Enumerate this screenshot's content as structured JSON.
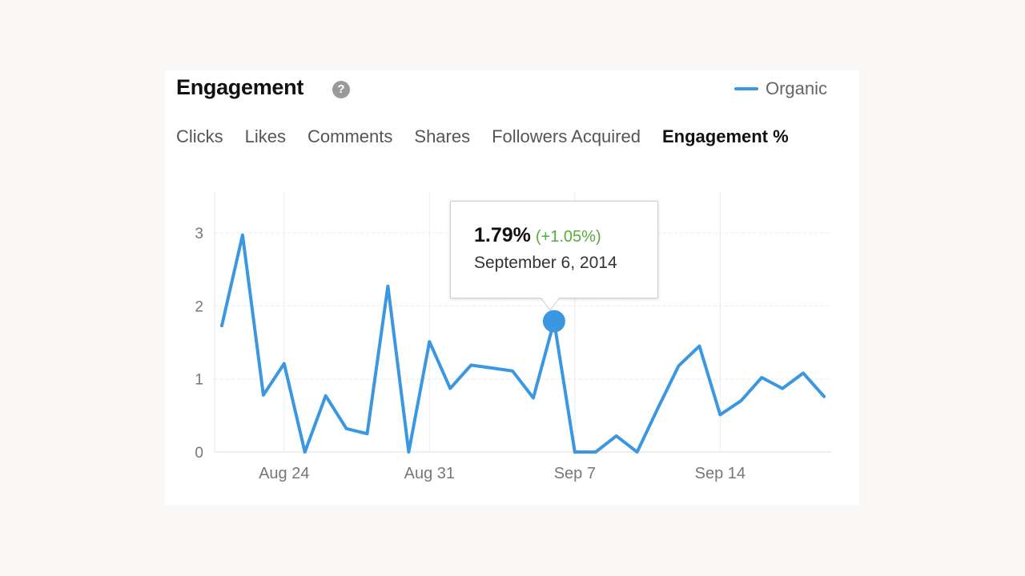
{
  "header": {
    "title": "Engagement",
    "help_icon": "question-mark-icon",
    "help_glyph": "?"
  },
  "legend": {
    "label": "Organic",
    "color": "#3b97e0"
  },
  "tabs": [
    {
      "label": "Clicks"
    },
    {
      "label": "Likes"
    },
    {
      "label": "Comments"
    },
    {
      "label": "Shares"
    },
    {
      "label": "Followers Acquired"
    },
    {
      "label": "Engagement %",
      "active": true
    }
  ],
  "tooltip": {
    "value": "1.79%",
    "change": "(+1.05%)",
    "date": "September 6, 2014",
    "change_color": "#5aaa3c"
  },
  "chart_data": {
    "type": "line",
    "series": [
      {
        "name": "Organic",
        "color": "#3b97e0",
        "x": [
          "2014-08-21",
          "2014-08-22",
          "2014-08-23",
          "2014-08-24",
          "2014-08-25",
          "2014-08-26",
          "2014-08-27",
          "2014-08-28",
          "2014-08-29",
          "2014-08-30",
          "2014-08-31",
          "2014-09-01",
          "2014-09-02",
          "2014-09-03",
          "2014-09-04",
          "2014-09-05",
          "2014-09-06",
          "2014-09-07",
          "2014-09-08",
          "2014-09-09",
          "2014-09-10",
          "2014-09-11",
          "2014-09-12",
          "2014-09-13",
          "2014-09-14",
          "2014-09-15",
          "2014-09-16",
          "2014-09-17",
          "2014-09-18",
          "2014-09-19"
        ],
        "values": [
          1.73,
          2.97,
          0.78,
          1.21,
          0.0,
          0.77,
          0.32,
          0.25,
          2.27,
          0.0,
          1.51,
          0.87,
          1.19,
          1.15,
          1.11,
          0.74,
          1.79,
          0.0,
          0.0,
          0.22,
          0.0,
          0.6,
          1.18,
          1.45,
          0.51,
          0.7,
          1.02,
          0.87,
          1.08,
          0.76
        ]
      }
    ],
    "highlight": {
      "x": "2014-09-06",
      "value": 1.79
    },
    "x_ticks": [
      {
        "x": "2014-08-24",
        "label": "Aug 24"
      },
      {
        "x": "2014-08-31",
        "label": "Aug 31"
      },
      {
        "x": "2014-09-07",
        "label": "Sep 7"
      },
      {
        "x": "2014-09-14",
        "label": "Sep 14"
      }
    ],
    "y_ticks": [
      0,
      1,
      2,
      3
    ],
    "ylim": [
      0,
      3.5
    ],
    "grid": true,
    "legend_position": "top-right"
  }
}
